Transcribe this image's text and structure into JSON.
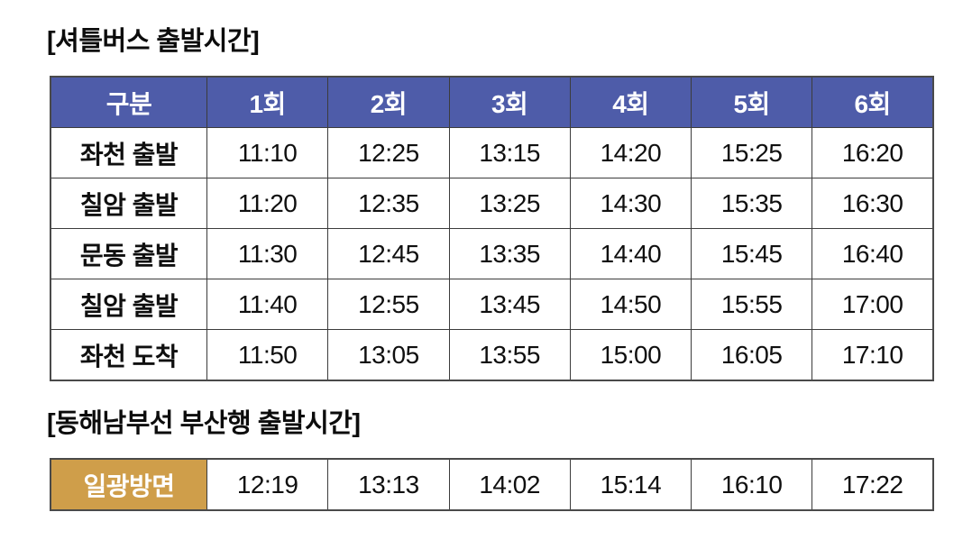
{
  "colors": {
    "header_bg": "#4e5ca9",
    "header_text": "#ffffff",
    "accent_gold": "#cf9e4a",
    "border": "#3c3c3c",
    "text": "#0f0f0f",
    "background": "#ffffff"
  },
  "shuttle": {
    "title": "[셔틀버스 출발시간]",
    "header": [
      "구분",
      "1회",
      "2회",
      "3회",
      "4회",
      "5회",
      "6회"
    ],
    "rows": [
      {
        "label": "좌천 출발",
        "times": [
          "11:10",
          "12:25",
          "13:15",
          "14:20",
          "15:25",
          "16:20"
        ]
      },
      {
        "label": "칠암 출발",
        "times": [
          "11:20",
          "12:35",
          "13:25",
          "14:30",
          "15:35",
          "16:30"
        ]
      },
      {
        "label": "문동 출발",
        "times": [
          "11:30",
          "12:45",
          "13:35",
          "14:40",
          "15:45",
          "16:40"
        ]
      },
      {
        "label": "칠암 출발",
        "times": [
          "11:40",
          "12:55",
          "13:45",
          "14:50",
          "15:55",
          "17:00"
        ]
      },
      {
        "label": "좌천 도착",
        "times": [
          "11:50",
          "13:05",
          "13:55",
          "15:00",
          "16:05",
          "17:10"
        ]
      }
    ]
  },
  "train": {
    "title": "[동해남부선 부산행 출발시간]",
    "rows": [
      {
        "label": "일광방면",
        "times": [
          "12:19",
          "13:13",
          "14:02",
          "15:14",
          "16:10",
          "17:22"
        ]
      }
    ]
  }
}
